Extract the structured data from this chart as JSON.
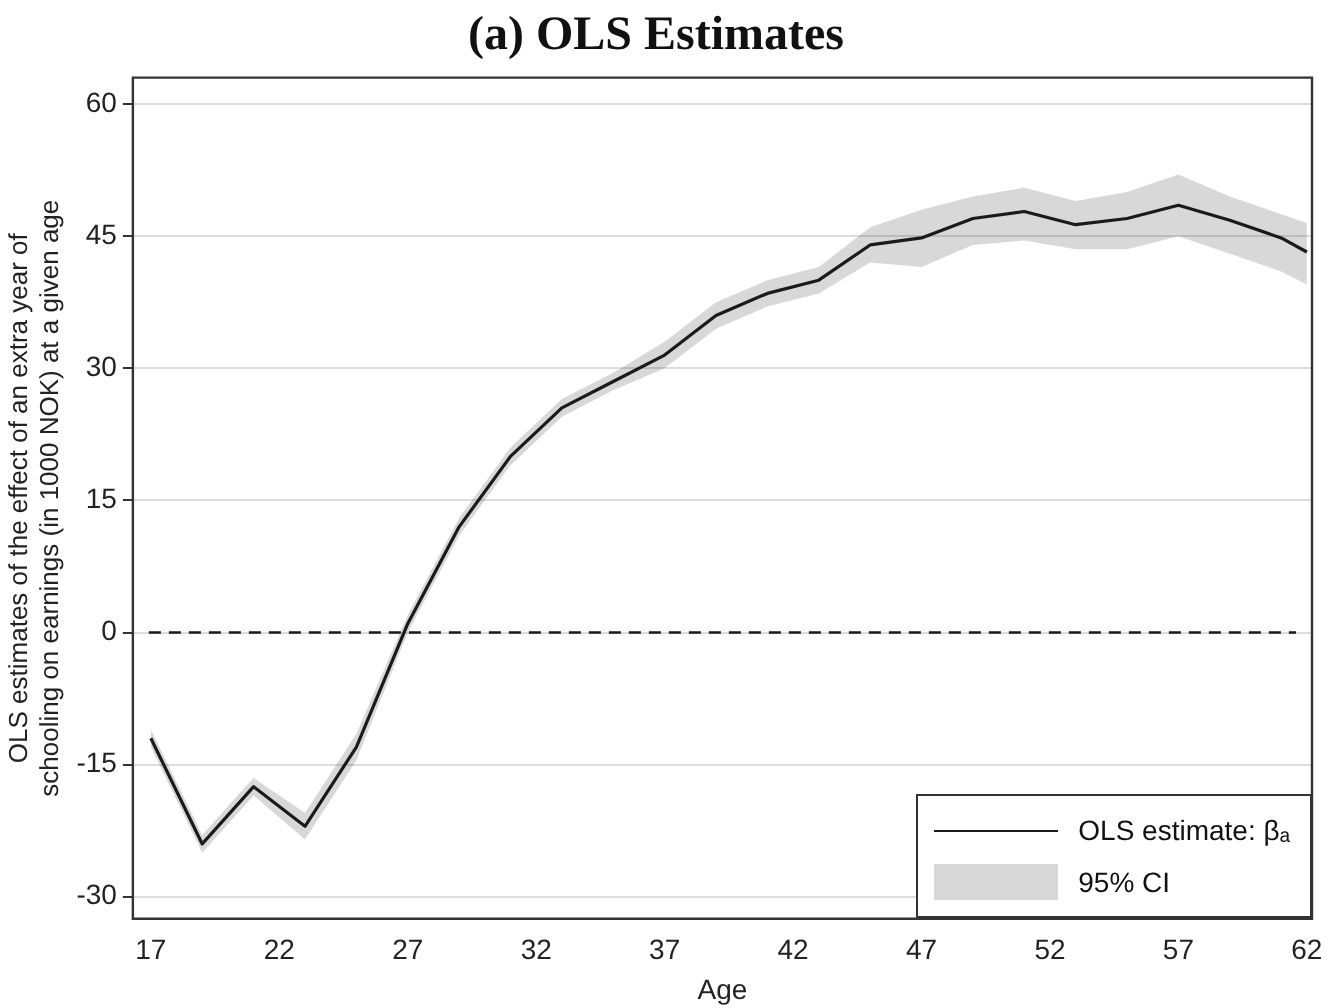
{
  "chart_data": {
    "type": "line",
    "title": "(a) OLS Estimates",
    "xlabel": "Age",
    "ylabel": "OLS estimates of the effect of an extra year of\nschooling on earnings (in 1000 NOK) at a given age",
    "x": [
      17,
      19,
      21,
      23,
      25,
      27,
      29,
      31,
      33,
      35,
      37,
      39,
      41,
      43,
      45,
      47,
      49,
      51,
      53,
      55,
      57,
      59,
      61,
      62
    ],
    "series": [
      {
        "name": "OLS estimate: βₐ",
        "color": "#1a1a1a",
        "values": [
          -12,
          -24,
          -17.5,
          -22,
          -13,
          1,
          12,
          20,
          25.5,
          28.5,
          31.5,
          36,
          38.5,
          40,
          44,
          44.8,
          47,
          47.8,
          46.3,
          47,
          48.5,
          46.8,
          44.8,
          43.2
        ],
        "lower": [
          -13,
          -25,
          -18.5,
          -23.5,
          -14.5,
          0,
          11,
          19,
          24.5,
          27.5,
          30,
          34.5,
          37,
          38.5,
          42,
          41.5,
          44,
          44.5,
          43.5,
          43.5,
          45,
          43,
          41,
          39.5
        ],
        "upper": [
          -11,
          -23,
          -16.5,
          -20.5,
          -11.5,
          2,
          13,
          21,
          26.5,
          29.5,
          33,
          37.5,
          40,
          41.5,
          46,
          48,
          49.5,
          50.5,
          49,
          50,
          52,
          49.5,
          47.5,
          46.5
        ]
      }
    ],
    "xlim": [
      16.3,
      62.2
    ],
    "ylim": [
      -32.5,
      63
    ],
    "xticks": [
      17,
      22,
      27,
      32,
      37,
      42,
      47,
      52,
      57,
      62
    ],
    "yticks": [
      -30,
      -15,
      0,
      15,
      30,
      45,
      60
    ],
    "annotations": [
      "95% CI"
    ],
    "grid": "y",
    "legend": "bottom right",
    "marker": "none",
    "line_style": "solid",
    "ref_lines": [
      {
        "axis": "y",
        "value": 0,
        "line_style": "dashed",
        "color": "#1a1a1a"
      }
    ]
  }
}
